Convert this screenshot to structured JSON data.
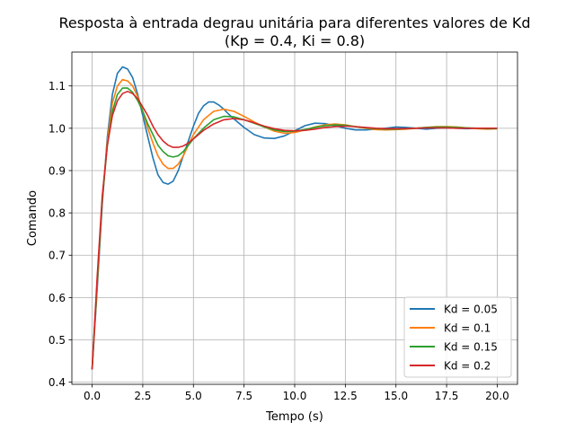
{
  "chart_data": {
    "type": "line",
    "title": "Resposta à entrada degrau unitária para diferentes valores de Kd",
    "subtitle": "(Kp = 0.4, Ki = 0.8)",
    "xlabel": "Tempo (s)",
    "ylabel": "Comando",
    "xlim": [
      -1.0,
      21.0
    ],
    "ylim": [
      0.395,
      1.18
    ],
    "xticks": [
      0.0,
      2.5,
      5.0,
      7.5,
      10.0,
      12.5,
      15.0,
      17.5,
      20.0
    ],
    "xtick_labels": [
      "0.0",
      "2.5",
      "5.0",
      "7.5",
      "10.0",
      "12.5",
      "15.0",
      "17.5",
      "20.0"
    ],
    "yticks": [
      0.4,
      0.5,
      0.6,
      0.7,
      0.8,
      0.9,
      1.0,
      1.1
    ],
    "ytick_labels": [
      "0.4",
      "0.5",
      "0.6",
      "0.7",
      "0.8",
      "0.9",
      "1.0",
      "1.1"
    ],
    "grid": true,
    "legend_position": "bottom-right",
    "series": [
      {
        "name": "Kd = 0.05",
        "color": "#1f77b4",
        "x": [
          0.0,
          0.25,
          0.5,
          0.75,
          1.0,
          1.25,
          1.5,
          1.75,
          2.0,
          2.25,
          2.5,
          2.75,
          3.0,
          3.25,
          3.5,
          3.75,
          4.0,
          4.25,
          4.5,
          4.75,
          5.0,
          5.25,
          5.5,
          5.75,
          6.0,
          6.25,
          6.5,
          6.75,
          7.0,
          7.5,
          8.0,
          8.5,
          9.0,
          9.5,
          10.0,
          10.5,
          11.0,
          11.5,
          12.0,
          12.5,
          13.0,
          13.5,
          14.0,
          14.5,
          15.0,
          15.5,
          16.0,
          16.5,
          17.0,
          17.5,
          18.0,
          18.5,
          19.0,
          19.5,
          20.0
        ],
        "y": [
          0.43,
          0.62,
          0.82,
          0.98,
          1.08,
          1.13,
          1.145,
          1.14,
          1.12,
          1.08,
          1.03,
          0.98,
          0.93,
          0.89,
          0.872,
          0.868,
          0.875,
          0.9,
          0.935,
          0.97,
          1.005,
          1.035,
          1.053,
          1.062,
          1.062,
          1.055,
          1.045,
          1.033,
          1.022,
          1.002,
          0.985,
          0.977,
          0.976,
          0.982,
          0.994,
          1.006,
          1.012,
          1.011,
          1.006,
          1.0,
          0.996,
          0.996,
          0.998,
          1.0,
          1.003,
          1.002,
          1.0,
          0.998,
          1.0,
          1.001,
          1.0,
          0.999,
          1.0,
          1.0,
          1.0
        ]
      },
      {
        "name": "Kd = 0.1",
        "color": "#ff7f0e",
        "x": [
          0.0,
          0.25,
          0.5,
          0.75,
          1.0,
          1.25,
          1.5,
          1.75,
          2.0,
          2.25,
          2.5,
          2.75,
          3.0,
          3.25,
          3.5,
          3.75,
          4.0,
          4.25,
          4.5,
          4.75,
          5.0,
          5.5,
          6.0,
          6.5,
          7.0,
          7.5,
          8.0,
          8.5,
          9.0,
          9.5,
          10.0,
          10.5,
          11.0,
          11.5,
          12.0,
          12.5,
          13.0,
          13.5,
          14.0,
          14.5,
          15.0,
          15.5,
          16.0,
          16.5,
          17.0,
          17.5,
          18.0,
          18.5,
          19.0,
          19.5,
          20.0
        ],
        "y": [
          0.43,
          0.63,
          0.83,
          0.97,
          1.06,
          1.1,
          1.115,
          1.112,
          1.1,
          1.075,
          1.04,
          1.0,
          0.965,
          0.935,
          0.915,
          0.905,
          0.905,
          0.915,
          0.935,
          0.96,
          0.985,
          1.02,
          1.04,
          1.045,
          1.04,
          1.028,
          1.015,
          1.003,
          0.993,
          0.988,
          0.99,
          0.996,
          1.003,
          1.008,
          1.01,
          1.008,
          1.004,
          1.0,
          0.997,
          0.996,
          0.997,
          0.998,
          1.0,
          1.002,
          1.004,
          1.004,
          1.003,
          1.001,
          0.999,
          0.998,
          0.999
        ]
      },
      {
        "name": "Kd = 0.15",
        "color": "#2ca02c",
        "x": [
          0.0,
          0.25,
          0.5,
          0.75,
          1.0,
          1.25,
          1.5,
          1.75,
          2.0,
          2.25,
          2.5,
          2.75,
          3.0,
          3.25,
          3.5,
          3.75,
          4.0,
          4.25,
          4.5,
          4.75,
          5.0,
          5.5,
          6.0,
          6.5,
          7.0,
          7.5,
          8.0,
          8.5,
          9.0,
          9.5,
          10.0,
          10.5,
          11.0,
          11.5,
          12.0,
          12.5,
          13.0,
          13.5,
          14.0,
          14.5,
          15.0,
          15.5,
          16.0,
          16.5,
          17.0,
          17.5,
          18.0,
          18.5,
          19.0,
          19.5,
          20.0
        ],
        "y": [
          0.43,
          0.64,
          0.83,
          0.96,
          1.04,
          1.08,
          1.095,
          1.095,
          1.085,
          1.065,
          1.04,
          1.01,
          0.985,
          0.96,
          0.945,
          0.935,
          0.932,
          0.935,
          0.945,
          0.96,
          0.975,
          1.0,
          1.02,
          1.028,
          1.027,
          1.02,
          1.012,
          1.003,
          0.996,
          0.992,
          0.993,
          0.997,
          1.002,
          1.006,
          1.008,
          1.007,
          1.004,
          1.001,
          0.999,
          0.998,
          0.998,
          0.999,
          1.0,
          1.002,
          1.003,
          1.003,
          1.002,
          1.001,
          1.0,
          0.999,
          0.999
        ]
      },
      {
        "name": "Kd = 0.2",
        "color": "#d62728",
        "x": [
          0.0,
          0.25,
          0.5,
          0.75,
          1.0,
          1.25,
          1.5,
          1.75,
          2.0,
          2.25,
          2.5,
          2.75,
          3.0,
          3.25,
          3.5,
          3.75,
          4.0,
          4.25,
          4.5,
          4.75,
          5.0,
          5.5,
          6.0,
          6.5,
          7.0,
          7.5,
          8.0,
          8.5,
          9.0,
          9.5,
          10.0,
          10.5,
          11.0,
          11.5,
          12.0,
          12.5,
          13.0,
          13.5,
          14.0,
          14.5,
          15.0,
          15.5,
          16.0,
          16.5,
          17.0,
          17.5,
          18.0,
          18.5,
          19.0,
          19.5,
          20.0
        ],
        "y": [
          0.43,
          0.65,
          0.84,
          0.96,
          1.03,
          1.065,
          1.082,
          1.087,
          1.082,
          1.07,
          1.05,
          1.03,
          1.005,
          0.985,
          0.97,
          0.96,
          0.955,
          0.955,
          0.958,
          0.965,
          0.975,
          0.995,
          1.01,
          1.02,
          1.023,
          1.02,
          1.013,
          1.005,
          0.999,
          0.995,
          0.994,
          0.995,
          0.998,
          1.002,
          1.004,
          1.005,
          1.004,
          1.002,
          1.0,
          0.999,
          0.999,
          0.999,
          1.0,
          1.001,
          1.001,
          1.001,
          1.0,
          1.0,
          1.0,
          1.0,
          1.0
        ]
      }
    ]
  }
}
